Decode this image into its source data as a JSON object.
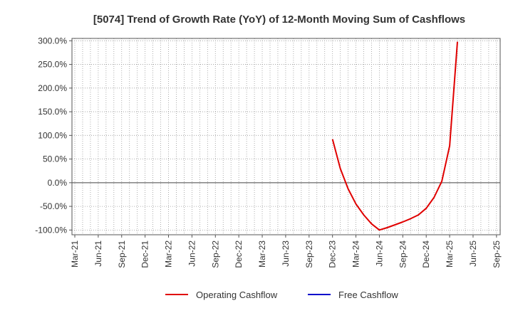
{
  "chart_data": {
    "type": "line",
    "title": "[5074]  Trend of Growth Rate (YoY) of 12-Month Moving Sum of Cashflows",
    "xlabel": "",
    "ylabel": "",
    "x_tick_labels": [
      "Mar-21",
      "Jun-21",
      "Sep-21",
      "Dec-21",
      "Mar-22",
      "Jun-22",
      "Sep-22",
      "Dec-22",
      "Mar-23",
      "Jun-23",
      "Sep-23",
      "Dec-23",
      "Mar-24",
      "Jun-24",
      "Sep-24",
      "Dec-24",
      "Mar-25",
      "Jun-25",
      "Sep-25"
    ],
    "y_ticks": [
      300,
      250,
      200,
      150,
      100,
      50,
      0,
      -50,
      -100
    ],
    "y_tick_labels": [
      "300.0%",
      "250.0%",
      "200.0%",
      "150.0%",
      "100.0%",
      "50.0%",
      "0.0%",
      "-50.0%",
      "-100.0%"
    ],
    "ylim": [
      -110,
      305
    ],
    "grid": true,
    "legend_position": "bottom",
    "series": [
      {
        "name": "Operating Cashflow",
        "color": "#e00000",
        "points": [
          {
            "x": "Dec-23",
            "y": 92
          },
          {
            "x": "Jan-24",
            "y": 30
          },
          {
            "x": "Feb-24",
            "y": -13
          },
          {
            "x": "Mar-24",
            "y": -45
          },
          {
            "x": "Apr-24",
            "y": -68
          },
          {
            "x": "May-24",
            "y": -87
          },
          {
            "x": "Jun-24",
            "y": -100
          },
          {
            "x": "Jul-24",
            "y": -95
          },
          {
            "x": "Aug-24",
            "y": -89
          },
          {
            "x": "Sep-24",
            "y": -83
          },
          {
            "x": "Oct-24",
            "y": -76
          },
          {
            "x": "Nov-24",
            "y": -68
          },
          {
            "x": "Dec-24",
            "y": -54
          },
          {
            "x": "Jan-25",
            "y": -31
          },
          {
            "x": "Feb-25",
            "y": 3
          },
          {
            "x": "Mar-25",
            "y": 78
          },
          {
            "x": "Apr-25",
            "y": 298
          }
        ]
      },
      {
        "name": "Free Cashflow",
        "color": "#0000cc",
        "points": []
      }
    ]
  }
}
